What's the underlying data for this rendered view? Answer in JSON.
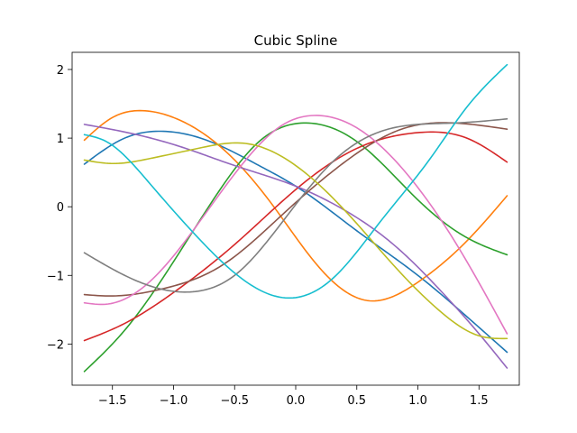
{
  "chart_data": {
    "type": "line",
    "title": "Cubic Spline",
    "xlabel": "",
    "ylabel": "",
    "xlim": [
      -1.83,
      1.83
    ],
    "ylim": [
      -2.6,
      2.25
    ],
    "xticks": [
      -1.5,
      -1.0,
      -0.5,
      0.0,
      0.5,
      1.0,
      1.5
    ],
    "xtick_labels": [
      "−1.5",
      "−1.0",
      "−0.5",
      "0.0",
      "0.5",
      "1.0",
      "1.5"
    ],
    "yticks": [
      -2,
      -1,
      0,
      1,
      2
    ],
    "ytick_labels": [
      "−2",
      "−1",
      "0",
      "1",
      "2"
    ],
    "grid": false,
    "series": [
      {
        "color": "#1f77b4",
        "x": [
          -1.73,
          -1.4,
          -1.1,
          -0.7,
          -0.3,
          0.0,
          0.5,
          1.0,
          1.4,
          1.73
        ],
        "y": [
          0.62,
          1.0,
          1.1,
          0.95,
          0.6,
          0.3,
          -0.35,
          -1.0,
          -1.6,
          -2.12
        ]
      },
      {
        "color": "#ff7f0e",
        "x": [
          -1.73,
          -1.5,
          -1.25,
          -1.0,
          -0.6,
          -0.2,
          0.2,
          0.6,
          1.0,
          1.4,
          1.73
        ],
        "y": [
          0.97,
          1.3,
          1.4,
          1.3,
          0.85,
          0.05,
          -0.9,
          -1.37,
          -1.1,
          -0.5,
          0.16
        ]
      },
      {
        "color": "#2ca02c",
        "x": [
          -1.73,
          -1.4,
          -1.0,
          -0.6,
          -0.3,
          0.1,
          0.5,
          1.0,
          1.4,
          1.73
        ],
        "y": [
          -2.4,
          -1.8,
          -0.8,
          0.3,
          0.95,
          1.22,
          0.95,
          0.1,
          -0.45,
          -0.7
        ]
      },
      {
        "color": "#d62728",
        "x": [
          -1.73,
          -1.4,
          -1.0,
          -0.5,
          0.0,
          0.5,
          1.0,
          1.4,
          1.73
        ],
        "y": [
          -1.95,
          -1.7,
          -1.25,
          -0.55,
          0.25,
          0.85,
          1.08,
          1.0,
          0.65
        ]
      },
      {
        "color": "#9467bd",
        "x": [
          -1.73,
          -1.3,
          -0.9,
          -0.5,
          0.0,
          0.4,
          0.8,
          1.2,
          1.5,
          1.73
        ],
        "y": [
          1.2,
          1.05,
          0.85,
          0.6,
          0.3,
          -0.05,
          -0.55,
          -1.25,
          -1.85,
          -2.35
        ]
      },
      {
        "color": "#8c564b",
        "x": [
          -1.73,
          -1.5,
          -1.1,
          -0.6,
          -0.1,
          0.4,
          0.9,
          1.3,
          1.73
        ],
        "y": [
          -1.28,
          -1.3,
          -1.2,
          -0.85,
          -0.1,
          0.65,
          1.15,
          1.22,
          1.13
        ]
      },
      {
        "color": "#e377c2",
        "x": [
          -1.73,
          -1.55,
          -1.2,
          -0.8,
          -0.4,
          -0.1,
          0.15,
          0.5,
          0.9,
          1.3,
          1.73
        ],
        "y": [
          -1.4,
          -1.42,
          -1.1,
          -0.25,
          0.7,
          1.2,
          1.33,
          1.15,
          0.5,
          -0.5,
          -1.85
        ]
      },
      {
        "color": "#7f7f7f",
        "x": [
          -1.73,
          -1.4,
          -1.1,
          -0.85,
          -0.5,
          -0.1,
          0.3,
          0.7,
          1.0,
          1.3,
          1.73
        ],
        "y": [
          -0.67,
          -1.0,
          -1.2,
          -1.24,
          -1.0,
          -0.2,
          0.65,
          1.1,
          1.2,
          1.22,
          1.28
        ]
      },
      {
        "color": "#bcbd22",
        "x": [
          -1.73,
          -1.5,
          -1.2,
          -0.8,
          -0.4,
          0.0,
          0.4,
          0.8,
          1.2,
          1.5,
          1.73
        ],
        "y": [
          0.68,
          0.63,
          0.7,
          0.85,
          0.92,
          0.6,
          -0.05,
          -0.85,
          -1.55,
          -1.88,
          -1.92
        ]
      },
      {
        "color": "#17becf",
        "x": [
          -1.73,
          -1.55,
          -1.2,
          -0.8,
          -0.4,
          -0.05,
          0.3,
          0.7,
          1.1,
          1.4,
          1.73
        ],
        "y": [
          1.05,
          0.95,
          0.35,
          -0.45,
          -1.1,
          -1.33,
          -1.05,
          -0.2,
          0.7,
          1.45,
          2.07
        ]
      }
    ]
  }
}
